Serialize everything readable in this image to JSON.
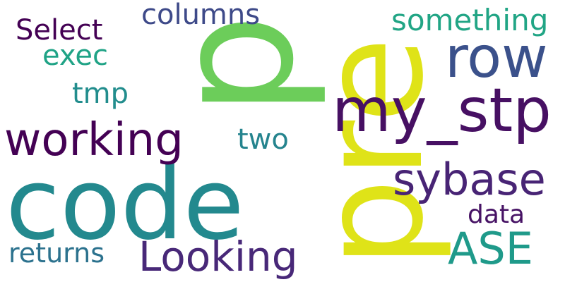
{
  "words": [
    {
      "text": "code",
      "color": "#23898e"
    },
    {
      "text": "pre",
      "color": "#dfe318"
    },
    {
      "text": "p",
      "color": "#6ccd5a"
    },
    {
      "text": "my_stp",
      "color": "#471063"
    },
    {
      "text": "row",
      "color": "#3b518b"
    },
    {
      "text": "working",
      "color": "#440154"
    },
    {
      "text": "sybase",
      "color": "#482475"
    },
    {
      "text": "Looking",
      "color": "#482878"
    },
    {
      "text": "ASE",
      "color": "#1f9a8a"
    },
    {
      "text": "something",
      "color": "#21a585"
    },
    {
      "text": "columns",
      "color": "#3e4a89"
    },
    {
      "text": "Select",
      "color": "#440154"
    },
    {
      "text": "exec",
      "color": "#20a386"
    },
    {
      "text": "tmp",
      "color": "#228d8d"
    },
    {
      "text": "two",
      "color": "#25848e"
    },
    {
      "text": "data",
      "color": "#471365"
    },
    {
      "text": "returns",
      "color": "#2c728e"
    }
  ]
}
